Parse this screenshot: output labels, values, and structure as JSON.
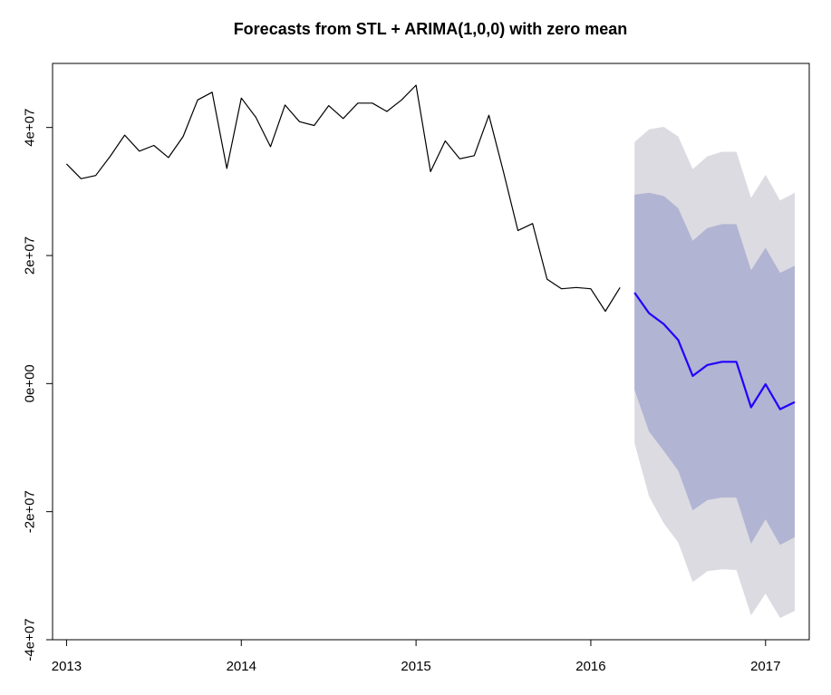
{
  "chart_data": {
    "type": "line",
    "title": "Forecasts from STL +  ARIMA(1,0,0) with zero mean",
    "xlabel": "",
    "ylabel": "",
    "xlim": [
      2012.92,
      2017.25
    ],
    "ylim": [
      -40000000,
      50000000
    ],
    "grid": false,
    "x_ticks": [
      {
        "value": 2013,
        "label": "2013"
      },
      {
        "value": 2014,
        "label": "2014"
      },
      {
        "value": 2015,
        "label": "2015"
      },
      {
        "value": 2016,
        "label": "2016"
      },
      {
        "value": 2017,
        "label": "2017"
      }
    ],
    "y_ticks": [
      {
        "value": -40000000,
        "label": "-4e+07"
      },
      {
        "value": -20000000,
        "label": "-2e+07"
      },
      {
        "value": 0,
        "label": "0e+00"
      },
      {
        "value": 20000000,
        "label": "2e+07"
      },
      {
        "value": 40000000,
        "label": "4e+07"
      }
    ],
    "colors": {
      "history": "#000000",
      "forecast": "#2200ff",
      "band80": "#b1b4d2",
      "band95": "#dcdbe2",
      "axis": "#000000"
    },
    "history": {
      "x": [
        2013.0,
        2013.083,
        2013.167,
        2013.25,
        2013.333,
        2013.417,
        2013.5,
        2013.583,
        2013.667,
        2013.75,
        2013.833,
        2013.917,
        2014.0,
        2014.083,
        2014.167,
        2014.25,
        2014.333,
        2014.417,
        2014.5,
        2014.583,
        2014.667,
        2014.75,
        2014.833,
        2014.917,
        2015.0,
        2015.083,
        2015.167,
        2015.25,
        2015.333,
        2015.417,
        2015.5,
        2015.583,
        2015.667,
        2015.75,
        2015.833,
        2015.917,
        2016.0,
        2016.083,
        2016.167
      ],
      "y": [
        34300000,
        32000000,
        32500000,
        35500000,
        38800000,
        36300000,
        37200000,
        35300000,
        38600000,
        44300000,
        45500000,
        33600000,
        44600000,
        41600000,
        37000000,
        43500000,
        40900000,
        40300000,
        43400000,
        41400000,
        43800000,
        43800000,
        42500000,
        44300000,
        46600000,
        33100000,
        37900000,
        35100000,
        35600000,
        41900000,
        33100000,
        23900000,
        25000000,
        16300000,
        14800000,
        15000000,
        14800000,
        11300000,
        15000000
      ]
    },
    "forecast": {
      "x": [
        2016.25,
        2016.333,
        2016.417,
        2016.5,
        2016.583,
        2016.667,
        2016.75,
        2016.833,
        2016.917,
        2017.0,
        2017.083,
        2017.167
      ],
      "mean": [
        14200000,
        11000000,
        9300000,
        6800000,
        1200000,
        2900000,
        3400000,
        3400000,
        -3700000,
        -100000,
        -4000000,
        -2900000
      ],
      "lo80": [
        -1000000,
        -7500000,
        -10500000,
        -13600000,
        -19800000,
        -18200000,
        -17800000,
        -17800000,
        -25000000,
        -21200000,
        -25200000,
        -24000000
      ],
      "hi80": [
        29500000,
        29800000,
        29300000,
        27400000,
        22300000,
        24300000,
        24900000,
        24900000,
        17700000,
        21200000,
        17300000,
        18400000
      ],
      "lo95": [
        -9300000,
        -17600000,
        -21800000,
        -24800000,
        -31000000,
        -29300000,
        -29000000,
        -29100000,
        -36200000,
        -32800000,
        -36600000,
        -35500000
      ],
      "hi95": [
        37700000,
        39700000,
        40100000,
        38600000,
        33500000,
        35500000,
        36200000,
        36200000,
        29000000,
        32600000,
        28600000,
        29800000
      ]
    }
  }
}
